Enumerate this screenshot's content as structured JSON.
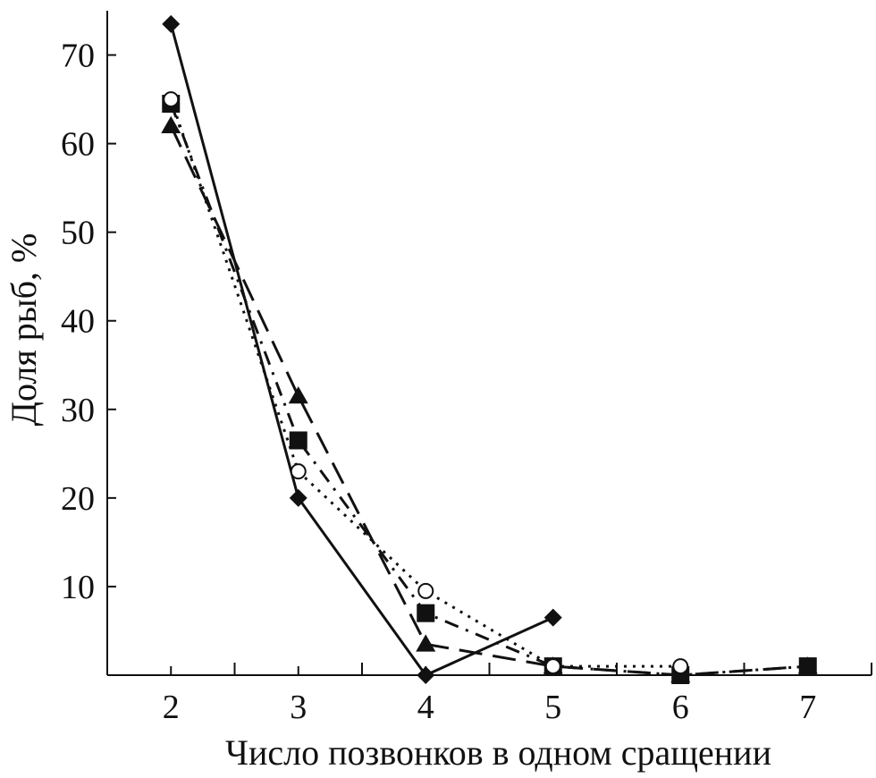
{
  "chart_data": {
    "type": "line",
    "title": "",
    "xlabel": "Число позвонков в одном сращении",
    "ylabel": "Доля рыб, %",
    "xlim": [
      1.5,
      7.5
    ],
    "ylim": [
      0,
      75
    ],
    "x_ticks": [
      "2",
      "3",
      "4",
      "5",
      "6",
      "7"
    ],
    "y_ticks": [
      "10",
      "20",
      "30",
      "40",
      "50",
      "60",
      "70"
    ],
    "grid": false,
    "legend": "none",
    "series": [
      {
        "marker": "diamond-filled",
        "line": "solid",
        "points": [
          [
            2,
            73.5
          ],
          [
            3,
            20
          ],
          [
            4,
            0
          ],
          [
            5,
            6.5
          ]
        ]
      },
      {
        "marker": "triangle-filled",
        "line": "long-dash",
        "points": [
          [
            2,
            62
          ],
          [
            3,
            31.5
          ],
          [
            4,
            3.5
          ],
          [
            5,
            1
          ],
          [
            6,
            0
          ],
          [
            7,
            1
          ]
        ]
      },
      {
        "marker": "square-filled",
        "line": "dash-dot",
        "points": [
          [
            2,
            64.5
          ],
          [
            3,
            26.5
          ],
          [
            4,
            7
          ],
          [
            5,
            1
          ],
          [
            6,
            0
          ],
          [
            7,
            1
          ]
        ]
      },
      {
        "marker": "circle-open",
        "line": "dotted",
        "points": [
          [
            2,
            65
          ],
          [
            3,
            23
          ],
          [
            4,
            9.5
          ],
          [
            5,
            1
          ],
          [
            6,
            1
          ]
        ]
      }
    ],
    "colors": {
      "ink": "#111111",
      "background": "#ffffff"
    }
  }
}
